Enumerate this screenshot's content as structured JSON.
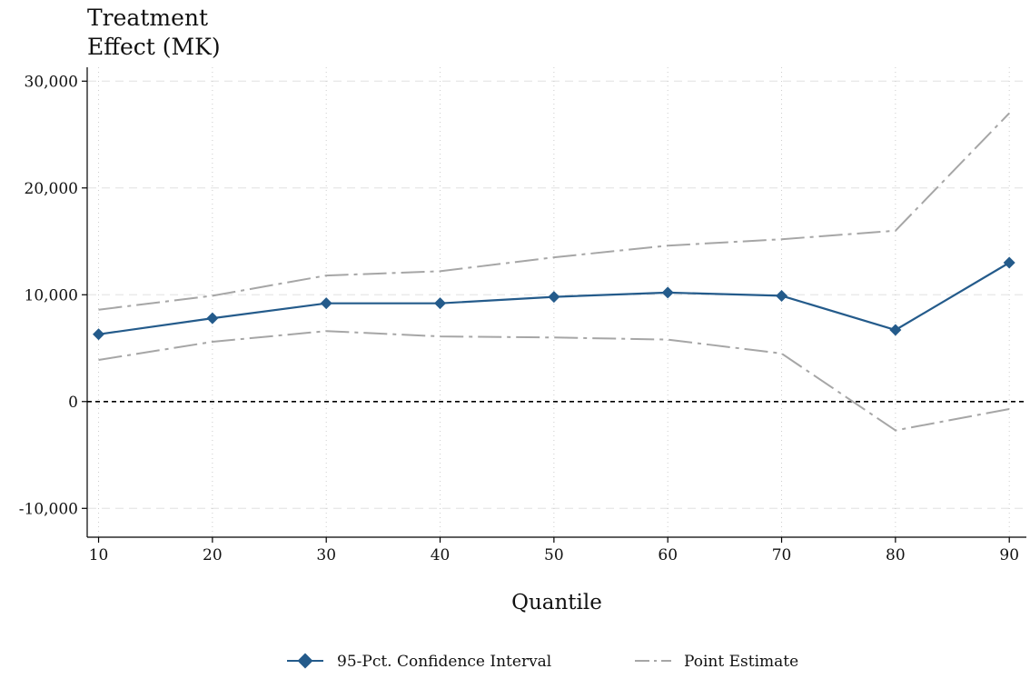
{
  "chart_data": {
    "type": "line",
    "ylabel_lines": [
      "Treatment",
      "Effect (MK)"
    ],
    "xlabel": "Quantile",
    "x": [
      10,
      20,
      30,
      40,
      50,
      60,
      70,
      80,
      90
    ],
    "x_tick_labels": [
      "10",
      "20",
      "30",
      "40",
      "50",
      "60",
      "70",
      "80",
      "90"
    ],
    "xlim": [
      9,
      91.5
    ],
    "y_ticks": [
      -10000,
      0,
      10000,
      20000,
      30000
    ],
    "y_tick_labels": [
      "-10,000",
      "0",
      "10,000",
      "20,000",
      "30,000"
    ],
    "ylim": [
      -12700,
      31300
    ],
    "reference_line_y": 0,
    "grid": true,
    "legend_position": "bottom",
    "series": [
      {
        "name": "95-Pct. Confidence Interval",
        "role": "estimate-with-markers",
        "color": "#245b8b",
        "values": [
          6300,
          7800,
          9200,
          9200,
          9800,
          10200,
          9900,
          6700,
          13000
        ]
      },
      {
        "name": "Point Estimate",
        "role": "bound-upper",
        "color": "#a6a6a6",
        "values": [
          8600,
          9900,
          11800,
          12200,
          13500,
          14600,
          15200,
          16000,
          27000
        ]
      },
      {
        "name": "Point Estimate",
        "role": "bound-lower",
        "color": "#a6a6a6",
        "values": [
          3900,
          5600,
          6600,
          6100,
          6000,
          5800,
          4500,
          -2700,
          -700
        ]
      }
    ]
  }
}
